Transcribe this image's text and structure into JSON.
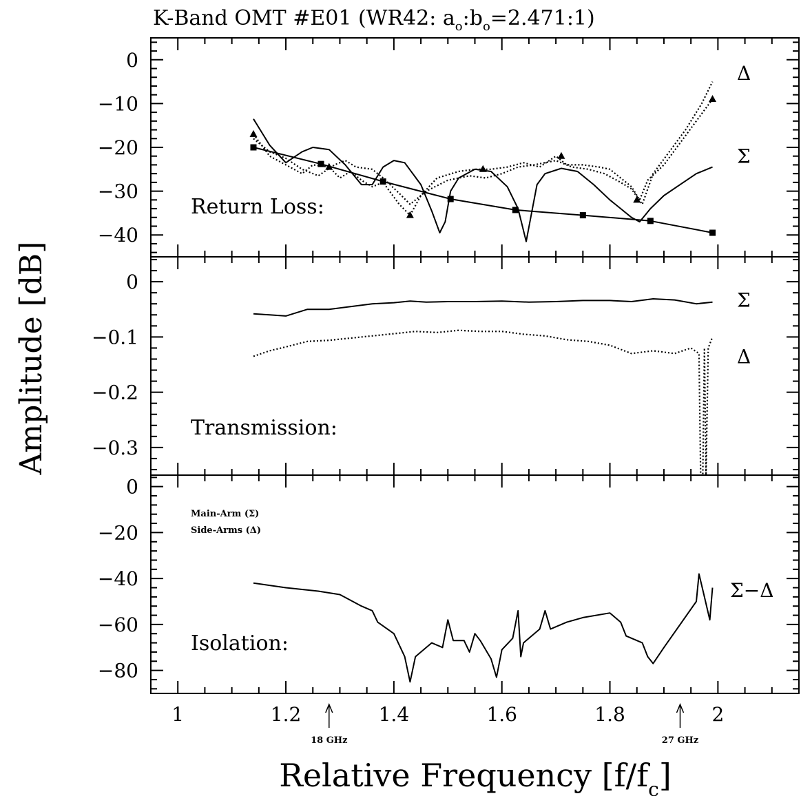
{
  "title": {
    "prefix": "K-Band OMT #E01 (WR42: a",
    "sub1": "o",
    "mid": ":b",
    "sub2": "o",
    "suffix": "=2.471:1)"
  },
  "ylabel": "Amplitude [dB]",
  "xlabel": {
    "main": "Relative Frequency [f/f",
    "sub": "c",
    "end": "]"
  },
  "xlim": [
    0.95,
    2.15
  ],
  "xticks": [
    {
      "value": 1,
      "label": "1"
    },
    {
      "value": 1.2,
      "label": "1.2"
    },
    {
      "value": 1.4,
      "label": "1.4"
    },
    {
      "value": 1.6,
      "label": "1.6"
    },
    {
      "value": 1.8,
      "label": "1.8"
    },
    {
      "value": 2,
      "label": "2"
    }
  ],
  "annotations": [
    {
      "x": 1.28,
      "label": "18 GHz"
    },
    {
      "x": 1.93,
      "label": "27 GHz"
    }
  ],
  "legend_note": [
    "Main-Arm  (Σ)",
    "Side-Arms (Δ)"
  ],
  "chart_data": [
    {
      "type": "line",
      "panel": "Return Loss:",
      "ylim": [
        -45,
        5
      ],
      "yticks": [
        {
          "value": 0,
          "label": "0"
        },
        {
          "value": -10,
          "label": "−10"
        },
        {
          "value": -20,
          "label": "−20"
        },
        {
          "value": -30,
          "label": "−30"
        },
        {
          "value": -40,
          "label": "−40"
        }
      ],
      "series": [
        {
          "name": "Σ",
          "style": "solid",
          "x": [
            1.14,
            1.17,
            1.2,
            1.23,
            1.25,
            1.28,
            1.31,
            1.34,
            1.36,
            1.38,
            1.4,
            1.42,
            1.45,
            1.47,
            1.485,
            1.495,
            1.505,
            1.52,
            1.55,
            1.58,
            1.61,
            1.63,
            1.645,
            1.655,
            1.665,
            1.68,
            1.71,
            1.74,
            1.77,
            1.8,
            1.82,
            1.84,
            1.855,
            1.865,
            1.875,
            1.9,
            1.93,
            1.96,
            1.99
          ],
          "y": [
            -13.5,
            -19.5,
            -23.5,
            -21,
            -20,
            -20.5,
            -24,
            -28.5,
            -28.5,
            -24.5,
            -23,
            -23.5,
            -28.5,
            -34.5,
            -39.5,
            -37,
            -30,
            -27,
            -25,
            -25.5,
            -29,
            -34,
            -41.5,
            -35,
            -28.5,
            -26,
            -24.8,
            -25.5,
            -28.5,
            -32,
            -34,
            -36,
            -37,
            -35.5,
            -34,
            -31,
            -28.5,
            -26,
            -24.5
          ],
          "markers": []
        },
        {
          "name": "Δ",
          "style": "dotted",
          "x": [
            1.14,
            1.17,
            1.2,
            1.23,
            1.25,
            1.28,
            1.3,
            1.32,
            1.34,
            1.36,
            1.38,
            1.41,
            1.43,
            1.45,
            1.48,
            1.52,
            1.55,
            1.58,
            1.61,
            1.64,
            1.67,
            1.7,
            1.72,
            1.75,
            1.78,
            1.8,
            1.82,
            1.84,
            1.855,
            1.87,
            1.9,
            1.93,
            1.96,
            1.99
          ],
          "y": [
            -17,
            -22,
            -24,
            -26,
            -24,
            -24.5,
            -27,
            -25.5,
            -27.5,
            -29,
            -28,
            -33,
            -35.5,
            -31,
            -27,
            -25.5,
            -25,
            -25,
            -24.5,
            -23.5,
            -24.5,
            -22,
            -24,
            -24,
            -24.5,
            -25,
            -27,
            -29,
            -32,
            -27.5,
            -24,
            -19,
            -14,
            -9
          ],
          "markers": [
            {
              "x": 1.14,
              "y": -17,
              "shape": "triangle"
            },
            {
              "x": 1.28,
              "y": -24.5,
              "shape": "triangle"
            },
            {
              "x": 1.43,
              "y": -35.5,
              "shape": "triangle"
            },
            {
              "x": 1.565,
              "y": -25,
              "shape": "triangle"
            },
            {
              "x": 1.71,
              "y": -22,
              "shape": "triangle"
            },
            {
              "x": 1.85,
              "y": -32,
              "shape": "triangle"
            },
            {
              "x": 1.99,
              "y": -9,
              "shape": "triangle"
            }
          ]
        },
        {
          "name": "Δ",
          "style": "dotted",
          "x": [
            1.14,
            1.17,
            1.2,
            1.23,
            1.26,
            1.29,
            1.31,
            1.33,
            1.36,
            1.38,
            1.41,
            1.43,
            1.46,
            1.5,
            1.54,
            1.57,
            1.6,
            1.63,
            1.66,
            1.7,
            1.73,
            1.76,
            1.79,
            1.82,
            1.84,
            1.86,
            1.88,
            1.91,
            1.94,
            1.97,
            1.99
          ],
          "y": [
            -18,
            -21,
            -22.5,
            -25,
            -26.5,
            -24,
            -23,
            -24.5,
            -25,
            -27,
            -30.5,
            -33,
            -30,
            -27.5,
            -26.5,
            -27,
            -26,
            -24.5,
            -24,
            -23,
            -24.5,
            -25,
            -26,
            -28,
            -29.5,
            -33,
            -26,
            -21,
            -16,
            -10,
            -5
          ],
          "markers": []
        },
        {
          "name": "",
          "style": "solid",
          "x": [
            1.14,
            1.265,
            1.38,
            1.505,
            1.625,
            1.75,
            1.875,
            1.99
          ],
          "y": [
            -20,
            -23.8,
            -27.8,
            -31.8,
            -34.3,
            -35.5,
            -36.8,
            -39.5
          ],
          "markers": [
            {
              "x": 1.14,
              "y": -20,
              "shape": "square"
            },
            {
              "x": 1.265,
              "y": -23.8,
              "shape": "square"
            },
            {
              "x": 1.38,
              "y": -27.8,
              "shape": "square"
            },
            {
              "x": 1.505,
              "y": -31.8,
              "shape": "square"
            },
            {
              "x": 1.625,
              "y": -34.3,
              "shape": "square"
            },
            {
              "x": 1.75,
              "y": -35.5,
              "shape": "square"
            },
            {
              "x": 1.875,
              "y": -36.8,
              "shape": "square"
            },
            {
              "x": 1.99,
              "y": -39.5,
              "shape": "square"
            }
          ]
        }
      ],
      "series_labels": [
        {
          "text": "Δ",
          "y": -3
        },
        {
          "text": "Σ",
          "y": -22
        }
      ]
    },
    {
      "type": "line",
      "panel": "Transmission:",
      "ylim": [
        -0.35,
        0.045
      ],
      "yticks": [
        {
          "value": 0,
          "label": "0"
        },
        {
          "value": -0.1,
          "label": "−0.1"
        },
        {
          "value": -0.2,
          "label": "−0.2"
        },
        {
          "value": -0.3,
          "label": "−0.3"
        }
      ],
      "series": [
        {
          "name": "Σ",
          "style": "solid",
          "x": [
            1.14,
            1.17,
            1.2,
            1.24,
            1.28,
            1.32,
            1.36,
            1.4,
            1.43,
            1.46,
            1.5,
            1.55,
            1.6,
            1.65,
            1.7,
            1.75,
            1.8,
            1.84,
            1.88,
            1.92,
            1.96,
            1.99
          ],
          "y": [
            -0.058,
            -0.06,
            -0.062,
            -0.05,
            -0.05,
            -0.045,
            -0.04,
            -0.038,
            -0.035,
            -0.037,
            -0.036,
            -0.036,
            -0.035,
            -0.037,
            -0.036,
            -0.034,
            -0.034,
            -0.036,
            -0.031,
            -0.033,
            -0.04,
            -0.037
          ],
          "markers": []
        },
        {
          "name": "Δ",
          "style": "dotted",
          "x": [
            1.14,
            1.17,
            1.2,
            1.24,
            1.28,
            1.32,
            1.36,
            1.4,
            1.44,
            1.48,
            1.52,
            1.56,
            1.6,
            1.64,
            1.68,
            1.72,
            1.76,
            1.8,
            1.84,
            1.88,
            1.92,
            1.95,
            1.965,
            1.968,
            1.972,
            1.975,
            1.978,
            1.982,
            1.99
          ],
          "y": [
            -0.135,
            -0.125,
            -0.118,
            -0.108,
            -0.106,
            -0.102,
            -0.098,
            -0.094,
            -0.09,
            -0.092,
            -0.088,
            -0.09,
            -0.09,
            -0.095,
            -0.098,
            -0.105,
            -0.108,
            -0.115,
            -0.13,
            -0.125,
            -0.13,
            -0.12,
            -0.13,
            -0.35,
            -0.35,
            -0.12,
            -0.35,
            -0.12,
            -0.1
          ],
          "markers": []
        }
      ],
      "series_labels": [
        {
          "text": "Σ",
          "y": -0.033
        },
        {
          "text": "Δ",
          "y": -0.135
        }
      ]
    },
    {
      "type": "line",
      "panel": "Isolation:",
      "ylim": [
        -90,
        5
      ],
      "yticks": [
        {
          "value": 0,
          "label": "0"
        },
        {
          "value": -20,
          "label": "−20"
        },
        {
          "value": -40,
          "label": "−40"
        },
        {
          "value": -60,
          "label": "−60"
        },
        {
          "value": -80,
          "label": "−80"
        }
      ],
      "series": [
        {
          "name": "Σ−Δ",
          "style": "solid",
          "x": [
            1.14,
            1.2,
            1.26,
            1.3,
            1.34,
            1.36,
            1.37,
            1.4,
            1.42,
            1.43,
            1.44,
            1.47,
            1.49,
            1.5,
            1.51,
            1.53,
            1.54,
            1.55,
            1.56,
            1.58,
            1.59,
            1.6,
            1.62,
            1.63,
            1.635,
            1.64,
            1.67,
            1.68,
            1.69,
            1.72,
            1.75,
            1.8,
            1.82,
            1.83,
            1.86,
            1.87,
            1.88,
            1.9,
            1.93,
            1.96,
            1.965,
            1.975,
            1.985,
            1.99
          ],
          "y": [
            -42,
            -44,
            -45.5,
            -47,
            -52,
            -54,
            -59,
            -64,
            -74,
            -85,
            -74,
            -68,
            -70,
            -58,
            -67,
            -67,
            -72,
            -64,
            -67,
            -75,
            -83,
            -71,
            -66,
            -54,
            -74,
            -68,
            -62,
            -54,
            -62,
            -59,
            -57,
            -55,
            -59,
            -65,
            -68,
            -74,
            -77,
            -70,
            -60,
            -50,
            -38,
            -48,
            -58,
            -44
          ],
          "markers": []
        }
      ],
      "series_labels": [
        {
          "text": "Σ−Δ",
          "y": -45
        }
      ]
    }
  ]
}
